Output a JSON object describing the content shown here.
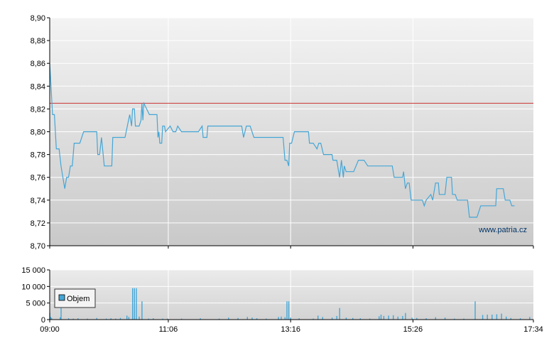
{
  "chart_data": [
    {
      "type": "line",
      "title": "",
      "xlabel": "",
      "ylabel": "",
      "x_range": [
        "09:00",
        "17:34"
      ],
      "ylim": [
        8.7,
        8.9
      ],
      "y_ticks": [
        "8,90",
        "8,88",
        "8,86",
        "8,84",
        "8,82",
        "8,80",
        "8,78",
        "8,76",
        "8,74",
        "8,72",
        "8,70"
      ],
      "x_tick_labels": [
        "09:00",
        "11:06",
        "13:16",
        "15:26",
        "17:34"
      ],
      "grid": true,
      "reference_line": {
        "value": 8.825,
        "color": "#cc3333"
      },
      "watermark": "www.patria.cz",
      "series": [
        {
          "color": "#44a6d6",
          "points": [
            [
              "09:00",
              8.86
            ],
            [
              "09:03",
              8.815
            ],
            [
              "09:05",
              8.815
            ],
            [
              "09:07",
              8.785
            ],
            [
              "09:10",
              8.785
            ],
            [
              "09:12",
              8.77
            ],
            [
              "09:14",
              8.76
            ],
            [
              "09:16",
              8.75
            ],
            [
              "09:18",
              8.76
            ],
            [
              "09:20",
              8.76
            ],
            [
              "09:22",
              8.77
            ],
            [
              "09:24",
              8.77
            ],
            [
              "09:26",
              8.79
            ],
            [
              "09:32",
              8.79
            ],
            [
              "09:36",
              8.8
            ],
            [
              "09:50",
              8.8
            ],
            [
              "09:51",
              8.78
            ],
            [
              "09:53",
              8.78
            ],
            [
              "09:55",
              8.795
            ],
            [
              "09:58",
              8.77
            ],
            [
              "10:06",
              8.77
            ],
            [
              "10:07",
              8.795
            ],
            [
              "10:20",
              8.795
            ],
            [
              "10:25",
              8.815
            ],
            [
              "10:27",
              8.805
            ],
            [
              "10:28",
              8.82
            ],
            [
              "10:30",
              8.82
            ],
            [
              "10:31",
              8.805
            ],
            [
              "10:35",
              8.805
            ],
            [
              "10:37",
              8.81
            ],
            [
              "10:38",
              8.825
            ],
            [
              "10:39",
              8.81
            ],
            [
              "10:40",
              8.825
            ],
            [
              "10:46",
              8.815
            ],
            [
              "10:54",
              8.815
            ],
            [
              "10:55",
              8.795
            ],
            [
              "10:56",
              8.8
            ],
            [
              "10:57",
              8.79
            ],
            [
              "10:59",
              8.79
            ],
            [
              "11:00",
              8.805
            ],
            [
              "11:02",
              8.805
            ],
            [
              "11:03",
              8.8
            ],
            [
              "11:08",
              8.805
            ],
            [
              "11:11",
              8.8
            ],
            [
              "11:14",
              8.8
            ],
            [
              "11:16",
              8.805
            ],
            [
              "11:20",
              8.8
            ],
            [
              "11:38",
              8.8
            ],
            [
              "11:42",
              8.805
            ],
            [
              "11:43",
              8.795
            ],
            [
              "11:47",
              8.795
            ],
            [
              "11:48",
              8.805
            ],
            [
              "12:24",
              8.805
            ],
            [
              "12:26",
              8.795
            ],
            [
              "12:29",
              8.805
            ],
            [
              "12:33",
              8.805
            ],
            [
              "12:37",
              8.795
            ],
            [
              "13:08",
              8.795
            ],
            [
              "13:10",
              8.775
            ],
            [
              "13:12",
              8.775
            ],
            [
              "13:14",
              8.77
            ],
            [
              "13:15",
              8.79
            ],
            [
              "13:17",
              8.79
            ],
            [
              "13:20",
              8.8
            ],
            [
              "13:35",
              8.8
            ],
            [
              "13:36",
              8.79
            ],
            [
              "13:40",
              8.79
            ],
            [
              "13:44",
              8.785
            ],
            [
              "13:46",
              8.79
            ],
            [
              "13:48",
              8.79
            ],
            [
              "13:51",
              8.78
            ],
            [
              "14:00",
              8.78
            ],
            [
              "14:01",
              8.775
            ],
            [
              "14:05",
              8.775
            ],
            [
              "14:08",
              8.76
            ],
            [
              "14:10",
              8.775
            ],
            [
              "14:12",
              8.76
            ],
            [
              "14:13",
              8.77
            ],
            [
              "14:15",
              8.765
            ],
            [
              "14:23",
              8.765
            ],
            [
              "14:28",
              8.775
            ],
            [
              "14:34",
              8.775
            ],
            [
              "14:38",
              8.77
            ],
            [
              "15:04",
              8.77
            ],
            [
              "15:06",
              8.76
            ],
            [
              "15:15",
              8.76
            ],
            [
              "15:16",
              8.765
            ],
            [
              "15:18",
              8.75
            ],
            [
              "15:20",
              8.755
            ],
            [
              "15:22",
              8.755
            ],
            [
              "15:24",
              8.74
            ],
            [
              "15:36",
              8.74
            ],
            [
              "15:38",
              8.735
            ],
            [
              "15:40",
              8.74
            ],
            [
              "15:45",
              8.745
            ],
            [
              "15:47",
              8.74
            ],
            [
              "15:50",
              8.755
            ],
            [
              "15:53",
              8.755
            ],
            [
              "15:54",
              8.745
            ],
            [
              "16:00",
              8.745
            ],
            [
              "16:02",
              8.76
            ],
            [
              "16:07",
              8.76
            ],
            [
              "16:08",
              8.745
            ],
            [
              "16:11",
              8.745
            ],
            [
              "16:13",
              8.74
            ],
            [
              "16:24",
              8.74
            ],
            [
              "16:26",
              8.725
            ],
            [
              "16:34",
              8.725
            ],
            [
              "16:36",
              8.73
            ],
            [
              "16:38",
              8.735
            ],
            [
              "16:54",
              8.735
            ],
            [
              "16:55",
              8.75
            ],
            [
              "17:02",
              8.75
            ],
            [
              "17:04",
              8.74
            ],
            [
              "17:09",
              8.74
            ],
            [
              "17:11",
              8.735
            ],
            [
              "17:14",
              8.735
            ]
          ]
        }
      ]
    },
    {
      "type": "bar",
      "title": "",
      "xlabel": "",
      "ylabel": "",
      "x_range": [
        "09:00",
        "17:34"
      ],
      "ylim": [
        0,
        15000
      ],
      "y_ticks": [
        "15 000",
        "10 000",
        "5 000",
        "0"
      ],
      "x_tick_labels": [
        "09:00",
        "11:06",
        "13:16",
        "15:26",
        "17:34"
      ],
      "grid": true,
      "legend_position": "top-left",
      "series": [
        {
          "name": "Objem",
          "color": "#44a6d6",
          "points": [
            [
              "09:00",
              2000
            ],
            [
              "09:01",
              800
            ],
            [
              "09:02",
              500
            ],
            [
              "09:11",
              700
            ],
            [
              "09:12",
              3500
            ],
            [
              "09:20",
              400
            ],
            [
              "09:25",
              300
            ],
            [
              "09:30",
              400
            ],
            [
              "09:40",
              300
            ],
            [
              "09:50",
              500
            ],
            [
              "10:00",
              300
            ],
            [
              "10:05",
              400
            ],
            [
              "10:10",
              300
            ],
            [
              "10:15",
              500
            ],
            [
              "10:22",
              1200
            ],
            [
              "10:24",
              800
            ],
            [
              "10:28",
              9500
            ],
            [
              "10:30",
              9500
            ],
            [
              "10:32",
              9500
            ],
            [
              "10:35",
              900
            ],
            [
              "10:38",
              5500
            ],
            [
              "10:45",
              300
            ],
            [
              "10:50",
              400
            ],
            [
              "11:00",
              300
            ],
            [
              "11:05",
              300
            ],
            [
              "11:20",
              300
            ],
            [
              "11:40",
              400
            ],
            [
              "12:00",
              300
            ],
            [
              "12:10",
              600
            ],
            [
              "12:20",
              500
            ],
            [
              "12:30",
              800
            ],
            [
              "12:35",
              600
            ],
            [
              "12:40",
              400
            ],
            [
              "12:50",
              300
            ],
            [
              "13:03",
              800
            ],
            [
              "13:06",
              900
            ],
            [
              "13:10",
              700
            ],
            [
              "13:12",
              5500
            ],
            [
              "13:14",
              5500
            ],
            [
              "13:16",
              600
            ],
            [
              "13:25",
              400
            ],
            [
              "13:40",
              300
            ],
            [
              "13:45",
              1200
            ],
            [
              "13:50",
              800
            ],
            [
              "14:00",
              600
            ],
            [
              "14:05",
              1100
            ],
            [
              "14:08",
              3500
            ],
            [
              "14:15",
              600
            ],
            [
              "14:22",
              500
            ],
            [
              "14:30",
              400
            ],
            [
              "14:40",
              300
            ],
            [
              "14:50",
              1000
            ],
            [
              "14:52",
              1500
            ],
            [
              "14:55",
              1100
            ],
            [
              "15:00",
              1200
            ],
            [
              "15:05",
              1300
            ],
            [
              "15:10",
              900
            ],
            [
              "15:15",
              1100
            ],
            [
              "15:18",
              2000
            ],
            [
              "15:25",
              600
            ],
            [
              "15:30",
              500
            ],
            [
              "15:40",
              400
            ],
            [
              "15:50",
              700
            ],
            [
              "16:00",
              600
            ],
            [
              "16:10",
              300
            ],
            [
              "16:20",
              300
            ],
            [
              "16:32",
              5500
            ],
            [
              "16:40",
              1400
            ],
            [
              "16:45",
              1500
            ],
            [
              "16:50",
              1500
            ],
            [
              "16:55",
              1600
            ],
            [
              "17:00",
              1800
            ],
            [
              "17:05",
              900
            ],
            [
              "17:10",
              500
            ],
            [
              "17:20",
              400
            ],
            [
              "17:30",
              800
            ]
          ]
        }
      ]
    }
  ]
}
